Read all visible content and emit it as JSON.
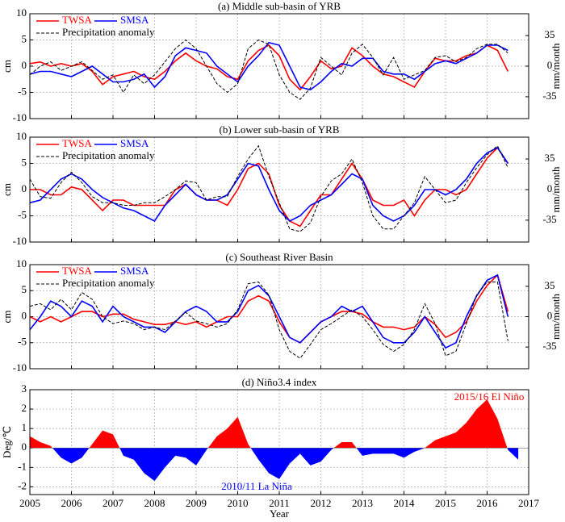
{
  "chart_data": [
    {
      "type": "line",
      "title": "(a) Middle sub-basin of  YRB",
      "ylabel": "cm",
      "y2label": "mm/month",
      "x": [
        2005,
        2005.25,
        2005.5,
        2005.75,
        2006,
        2006.25,
        2006.5,
        2006.75,
        2007,
        2007.25,
        2007.5,
        2007.75,
        2008,
        2008.25,
        2008.5,
        2008.75,
        2009,
        2009.25,
        2009.5,
        2009.75,
        2010,
        2010.25,
        2010.5,
        2010.75,
        2011,
        2011.25,
        2011.5,
        2011.75,
        2012,
        2012.25,
        2012.5,
        2012.75,
        2013,
        2013.25,
        2013.5,
        2013.75,
        2014,
        2014.25,
        2014.5,
        2014.75,
        2015,
        2015.25,
        2015.5,
        2015.75,
        2016,
        2016.25,
        2016.5
      ],
      "series": [
        {
          "name": "TWSA",
          "color": "#ff0000",
          "values": [
            0.5,
            0.8,
            0,
            0.5,
            0,
            0.5,
            -1,
            -3.5,
            -2,
            -1.5,
            -1,
            -2,
            -2.5,
            -1,
            1,
            2.5,
            1,
            0,
            -0.5,
            -2,
            -2.5,
            1,
            3,
            4,
            2,
            -2.5,
            -4.5,
            -2,
            1,
            -0.5,
            0,
            3.5,
            2,
            0,
            -1.5,
            -2,
            -3,
            -4,
            -1,
            1.5,
            1,
            1,
            2,
            2.5,
            4,
            3,
            -1
          ]
        },
        {
          "name": "SMSA",
          "color": "#0000ff",
          "values": [
            -1.5,
            -1,
            -1,
            -1.5,
            -2,
            -1,
            0,
            -1.5,
            -3,
            -3,
            -2.5,
            -1.5,
            -4,
            -2,
            2,
            3.5,
            3,
            2.5,
            0,
            -1.5,
            -3,
            0,
            2,
            4.5,
            4,
            0,
            -4,
            -4.5,
            -3,
            -1,
            0.5,
            0,
            1.5,
            1.5,
            -1,
            -1.5,
            -1.5,
            -2.5,
            -1,
            0.5,
            1,
            0.5,
            1.5,
            2.5,
            4,
            4,
            3
          ]
        },
        {
          "name": "Precipitation anomaly",
          "color": "#000000",
          "dashed": true,
          "axis": "y2",
          "values": [
            -10,
            0,
            5,
            -5,
            0,
            5,
            -5,
            -15,
            -10,
            -30,
            -10,
            -20,
            -10,
            5,
            20,
            30,
            20,
            0,
            -20,
            -30,
            -20,
            20,
            30,
            25,
            -10,
            -30,
            -38,
            -25,
            10,
            0,
            -10,
            15,
            25,
            10,
            -10,
            10,
            -15,
            -10,
            -5,
            10,
            12,
            5,
            10,
            20,
            25,
            25,
            15
          ]
        }
      ],
      "xlim": [
        2005,
        2017
      ],
      "xticks": [
        2005,
        2006,
        2007,
        2008,
        2009,
        2010,
        2011,
        2012,
        2013,
        2014,
        2015,
        2016,
        2017
      ],
      "ylim": [
        -10,
        10
      ],
      "yticks": [
        -10,
        -5,
        0,
        5,
        10
      ],
      "y2lim": [
        -60,
        60
      ],
      "y2ticks": [
        -35,
        0,
        35
      ],
      "grid": true
    },
    {
      "type": "line",
      "title": "(b) Lower sub-basin of  YRB",
      "ylabel": "cm",
      "y2label": "mm/month",
      "x": [
        2005,
        2005.25,
        2005.5,
        2005.75,
        2006,
        2006.25,
        2006.5,
        2006.75,
        2007,
        2007.25,
        2007.5,
        2007.75,
        2008,
        2008.25,
        2008.5,
        2008.75,
        2009,
        2009.25,
        2009.5,
        2009.75,
        2010,
        2010.25,
        2010.5,
        2010.75,
        2011,
        2011.25,
        2011.5,
        2011.75,
        2012,
        2012.25,
        2012.5,
        2012.75,
        2013,
        2013.25,
        2013.5,
        2013.75,
        2014,
        2014.25,
        2014.5,
        2014.75,
        2015,
        2015.25,
        2015.5,
        2015.75,
        2016,
        2016.25,
        2016.5
      ],
      "series": [
        {
          "name": "TWSA",
          "color": "#ff0000",
          "values": [
            0,
            0,
            -1,
            -1,
            0.5,
            0,
            -2,
            -4,
            -2,
            -2,
            -3,
            -3,
            -3,
            -3,
            0,
            1,
            -1,
            -2,
            -2,
            -3,
            0,
            4,
            5,
            3,
            -3,
            -6,
            -7,
            -4,
            -1,
            -1,
            2,
            5,
            2,
            -2,
            -3,
            -3,
            -2,
            -5,
            -2,
            0,
            0,
            -1,
            0,
            3,
            6,
            8,
            5
          ]
        },
        {
          "name": "SMSA",
          "color": "#0000ff",
          "values": [
            -2.5,
            -2,
            0,
            2,
            3,
            2,
            0,
            -1.5,
            -2.5,
            -3.5,
            -4,
            -5,
            -6,
            -3,
            -1,
            1,
            -1,
            -2,
            -2,
            -1,
            2,
            5,
            4.5,
            0,
            -4,
            -6,
            -5,
            -3,
            -2,
            -1,
            1,
            3,
            2,
            -3,
            -5,
            -6,
            -5,
            -3,
            0,
            0,
            -1,
            0,
            2,
            5,
            7,
            8,
            5
          ]
        },
        {
          "name": "Precipitation anomaly",
          "color": "#000000",
          "dashed": true,
          "axis": "y2",
          "values": [
            12,
            -8,
            -10,
            8,
            20,
            8,
            -8,
            -15,
            -15,
            -18,
            -18,
            -15,
            -15,
            -8,
            0,
            10,
            8,
            -12,
            -8,
            -8,
            15,
            35,
            50,
            15,
            -15,
            -45,
            -48,
            -38,
            -8,
            10,
            18,
            35,
            8,
            -30,
            -45,
            -45,
            -30,
            -15,
            15,
            0,
            -15,
            -12,
            8,
            25,
            40,
            50,
            25
          ]
        }
      ],
      "xlim": [
        2005,
        2017
      ],
      "xticks": [
        2005,
        2006,
        2007,
        2008,
        2009,
        2010,
        2011,
        2012,
        2013,
        2014,
        2015,
        2016,
        2017
      ],
      "ylim": [
        -10,
        10
      ],
      "yticks": [
        -10,
        -5,
        0,
        5,
        10
      ],
      "y2lim": [
        -60,
        60
      ],
      "y2ticks": [
        -35,
        0,
        35
      ],
      "grid": true
    },
    {
      "type": "line",
      "title": "(c) Southeast River Basin",
      "ylabel": "cm",
      "y2label": "mm/month",
      "x": [
        2005,
        2005.25,
        2005.5,
        2005.75,
        2006,
        2006.25,
        2006.5,
        2006.75,
        2007,
        2007.25,
        2007.5,
        2007.75,
        2008,
        2008.25,
        2008.5,
        2008.75,
        2009,
        2009.25,
        2009.5,
        2009.75,
        2010,
        2010.25,
        2010.5,
        2010.75,
        2011,
        2011.25,
        2011.5,
        2011.75,
        2012,
        2012.25,
        2012.5,
        2012.75,
        2013,
        2013.25,
        2013.5,
        2013.75,
        2014,
        2014.25,
        2014.5,
        2014.75,
        2015,
        2015.25,
        2015.5,
        2015.75,
        2016,
        2016.25,
        2016.5
      ],
      "series": [
        {
          "name": "TWSA",
          "color": "#ff0000",
          "values": [
            0,
            -1,
            0,
            -1,
            0,
            1,
            1,
            0,
            0.5,
            0.5,
            -0.5,
            -1,
            -1.5,
            -1.5,
            -1,
            -1.5,
            -1,
            -2,
            -1,
            0,
            0,
            3,
            4,
            3,
            -1,
            -4,
            -5,
            -3,
            -1,
            0,
            1,
            1,
            0.5,
            -1,
            -2,
            -2,
            -2.5,
            -2,
            0,
            -1.5,
            -4,
            -3,
            -1,
            3,
            6,
            8,
            1
          ]
        },
        {
          "name": "SMSA",
          "color": "#0000ff",
          "values": [
            -2.5,
            0,
            3,
            2,
            0,
            3,
            2,
            -1,
            2,
            0,
            -1,
            -2,
            -2,
            -3,
            -1,
            1,
            2,
            1,
            -1,
            -1,
            1,
            5,
            6,
            4,
            0,
            -4,
            -5,
            -3,
            -1,
            0,
            2,
            1,
            2,
            -1,
            -4,
            -5,
            -5,
            -3,
            0,
            -3,
            -6,
            -5,
            0,
            4,
            7,
            8,
            0
          ]
        },
        {
          "name": "Precipitation anomaly",
          "color": "#000000",
          "dashed": true,
          "axis": "y2",
          "values": [
            12,
            15,
            8,
            20,
            8,
            28,
            20,
            0,
            -8,
            -5,
            -8,
            -15,
            -12,
            -15,
            -5,
            5,
            -5,
            -8,
            -12,
            -8,
            8,
            38,
            40,
            25,
            -15,
            -40,
            -48,
            -32,
            -15,
            -8,
            0,
            8,
            0,
            -15,
            -32,
            -40,
            -32,
            -15,
            15,
            -8,
            -45,
            -40,
            -8,
            25,
            40,
            40,
            -28
          ]
        }
      ],
      "xlim": [
        2005,
        2017
      ],
      "xticks": [
        2005,
        2006,
        2007,
        2008,
        2009,
        2010,
        2011,
        2012,
        2013,
        2014,
        2015,
        2016,
        2017
      ],
      "ylim": [
        -10,
        10
      ],
      "yticks": [
        -10,
        -5,
        0,
        5,
        10
      ],
      "y2lim": [
        -60,
        60
      ],
      "y2ticks": [
        -35,
        0,
        35
      ],
      "grid": true
    },
    {
      "type": "area",
      "title": "(d) Niño3.4 index",
      "ylabel": "Deg/℃",
      "xlabel": "Year",
      "x": [
        2005,
        2005.25,
        2005.5,
        2005.75,
        2006,
        2006.25,
        2006.5,
        2006.75,
        2007,
        2007.25,
        2007.5,
        2007.75,
        2008,
        2008.25,
        2008.5,
        2008.75,
        2009,
        2009.25,
        2009.5,
        2009.75,
        2010,
        2010.25,
        2010.5,
        2010.75,
        2011,
        2011.25,
        2011.5,
        2011.75,
        2012,
        2012.25,
        2012.5,
        2012.75,
        2013,
        2013.25,
        2013.5,
        2013.75,
        2014,
        2014.25,
        2014.5,
        2014.75,
        2015,
        2015.25,
        2015.5,
        2015.75,
        2016,
        2016.25,
        2016.5,
        2016.75
      ],
      "values": [
        0.6,
        0.3,
        0.1,
        -0.5,
        -0.8,
        -0.5,
        0.2,
        0.9,
        0.7,
        -0.4,
        -0.6,
        -1.3,
        -1.7,
        -1.0,
        -0.4,
        -0.5,
        -0.9,
        -0.1,
        0.6,
        1.0,
        1.6,
        0.2,
        -0.6,
        -1.3,
        -1.6,
        -0.8,
        -0.3,
        -0.9,
        -0.7,
        -0.1,
        0.3,
        0.3,
        -0.4,
        -0.3,
        -0.3,
        -0.3,
        -0.5,
        -0.2,
        0.0,
        0.4,
        0.6,
        0.8,
        1.3,
        2.0,
        2.5,
        1.5,
        -0.1,
        -0.6
      ],
      "color_positive": "#ff0000",
      "color_negative": "#0000ff",
      "annotations": [
        {
          "text": "2015/16 El Niño",
          "color": "#ff0000"
        },
        {
          "text": "2010/11 La Niña",
          "color": "#0000ff"
        }
      ],
      "xlim": [
        2005,
        2017
      ],
      "xticks": [
        2005,
        2006,
        2007,
        2008,
        2009,
        2010,
        2011,
        2012,
        2013,
        2014,
        2015,
        2016,
        2017
      ],
      "ylim": [
        -2.4,
        3
      ],
      "yticks": [
        -2,
        -1,
        0,
        1,
        2,
        3
      ],
      "grid": true
    }
  ]
}
